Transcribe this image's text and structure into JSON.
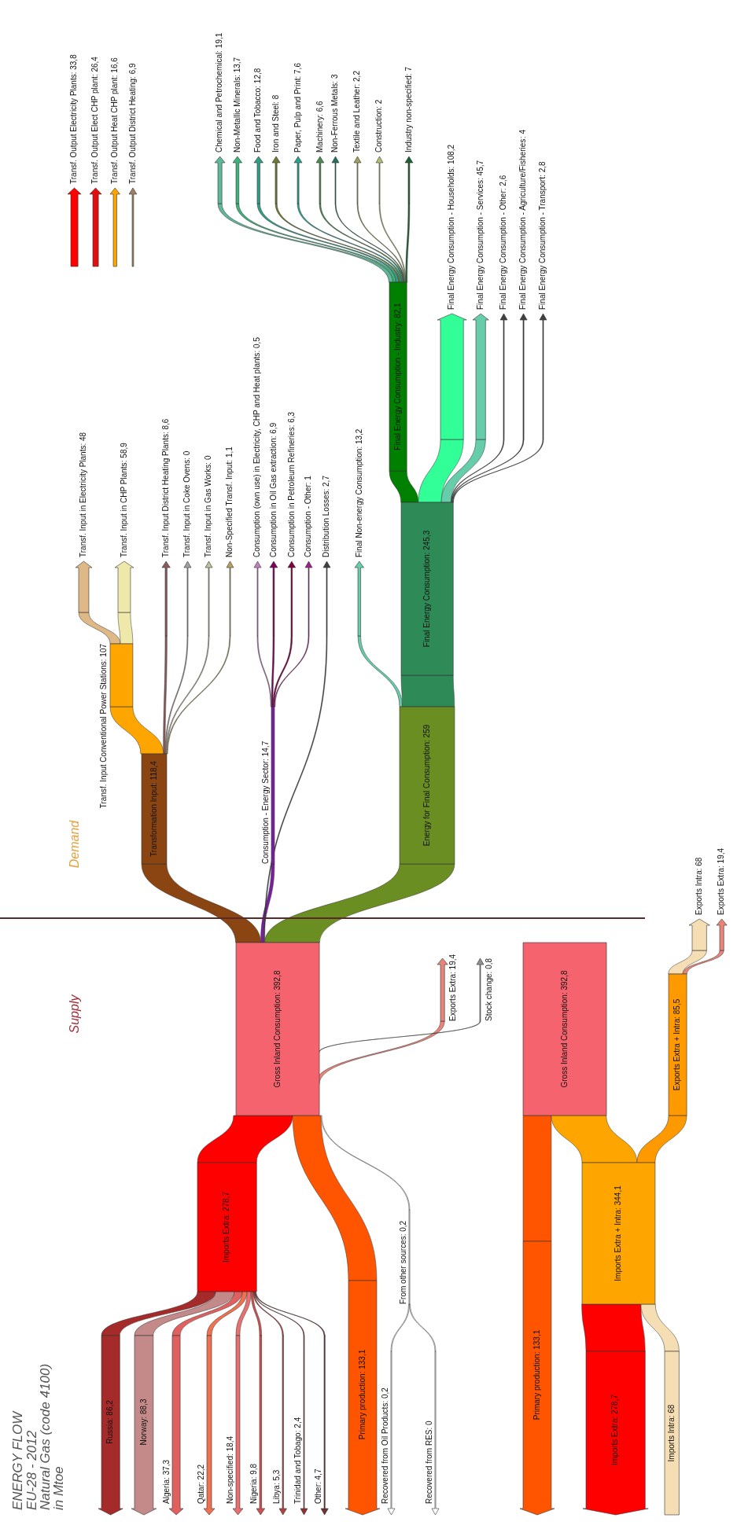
{
  "chart_data": {
    "type": "other",
    "title": "ENERGY FLOW",
    "subtitle": "EU-28 - 2012\nNatural Gas (code 4100)\nin Mtoe",
    "annotations": [
      "Supply",
      "Demand"
    ],
    "categories": [
      "Russia",
      "Norway",
      "Algeria",
      "Qatar",
      "Non-specified",
      "Nigeria",
      "Libya",
      "Trinidad and Tobago",
      "Other",
      "Imports Extra",
      "Primary production",
      "From other sources",
      "Recovered from Oil Products",
      "Recovered from RES",
      "Gross Inland Consumption",
      "Exports Extra",
      "Stock change",
      "Transformation Input",
      "Energy for Final Consumption",
      "Consumption - Energy Sector",
      "Distribution Losses",
      "Transf. Input Conventional Power Stations",
      "Transf. Input in Electricity Plants",
      "Transf. Input in CHP Plants",
      "Transf. Input District Heating Plants",
      "Transf. Input in Coke Ovens",
      "Transf. Input in Gas Works",
      "Non-Specified Transf. Input",
      "Consumption (own use) in Electricity, CHP and Heat plants",
      "Consumption in Oil Gas extraction",
      "Consumption in Petroleum Refineries",
      "Consumption - Other",
      "Final Non-energy Consumption",
      "Final Energy Consumption",
      "Final Energy Consumption - Industry",
      "Final Energy Consumption - Households",
      "Final Energy Consumption - Services",
      "Final Energy Consumption - Other",
      "Final Energy Consumption - Agriculture/Fisheries",
      "Final Energy Consumption - Transport",
      "Chemical and Petrochemical",
      "Non-Metallic Minerals",
      "Food and Tobacco",
      "Iron and Steel",
      "Paper, Pulp and Print",
      "Machinery",
      "Non-Ferrous Metals",
      "Textile and Leather",
      "Construction",
      "Industry non-specified",
      "Transf. Output Electricity Plants",
      "Transf. Output Elect CHP plant",
      "Transf. Output Heat CHP plant",
      "Transf. Output District Heating",
      "Gross Inland Consumption",
      "Primary production",
      "Imports Extra",
      "Imports Extra + Intra",
      "Exports Extra + Intra",
      "Exports Intra",
      "Imports Intra",
      "Exports Extra"
    ],
    "values": [
      86.2,
      88.3,
      37.3,
      22.2,
      18.4,
      9.8,
      5.3,
      2.4,
      4.7,
      278.7,
      133.1,
      0.2,
      0.2,
      0,
      392.8,
      19.4,
      0.8,
      118.4,
      259,
      14.7,
      2.7,
      107,
      48,
      58.9,
      8.6,
      0,
      0,
      1.1,
      0.5,
      6.9,
      6.3,
      1,
      13.2,
      245.3,
      82.1,
      108.2,
      45.7,
      2.6,
      4,
      2.8,
      19.1,
      13.7,
      12.8,
      8,
      7.6,
      6.6,
      3,
      2.2,
      2,
      7,
      33.8,
      26.4,
      16.6,
      6.9,
      392.8,
      133.1,
      278.7,
      344.1,
      85.5,
      68,
      68,
      19.4
    ],
    "value_labels": [
      ": 86,2",
      ": 88,3",
      ": 37,3",
      ": 22,2",
      ": 18,4",
      ": 9,8",
      ": 5,3",
      ": 2,4",
      ": 4,7",
      ": 278,7",
      ": 133,1",
      ": 0,2",
      ": 0,2",
      ": 0",
      ": 392,8",
      ": 19,4",
      ": 0,8",
      ": 118,4",
      ": 259",
      ": 14,7",
      ": 2,7",
      ": 107",
      ": 48",
      ": 58,9",
      ": 8,6",
      ": 0",
      ": 0",
      ": 1,1",
      ": 0,5",
      ": 6,9",
      ": 6,3",
      ": 1",
      ": 13,2",
      ": 245,3",
      ": 82,1",
      ": 108,2",
      ": 45,7",
      ": 2,6",
      ": 4",
      ": 2,8",
      ": 19,1",
      ": 13,7",
      ": 12,8",
      ": 8",
      ": 7,6",
      ": 6,6",
      ": 3",
      ": 2,2",
      ": 2",
      ": 7",
      ": 33,8",
      ": 26,4",
      ": 16,6",
      ": 6,9",
      ": 392,8",
      ": 133,1",
      ": 278,7",
      ": 344,1",
      ": 85,5",
      ": 68",
      ": 68",
      ": 19,4"
    ],
    "colors": [
      "#a52a2a",
      "#c48a8a",
      "#e06060",
      "#f07050",
      "#e87070",
      "#d05050",
      "#b84040",
      "#903030",
      "#703030",
      "#ff0000",
      "#ff5500",
      "#ffffff",
      "#ffffff",
      "#ffffff",
      "#f4636e",
      "#e8857a",
      "#909090",
      "#8b4513",
      "#6b8e23",
      "#7b1fa2",
      "#404040",
      "#ffa500",
      "#deb887",
      "#eee8aa",
      "#8b5a5a",
      "#a0a0a0",
      "#c0c0a0",
      "#b8a060",
      "#c080c0",
      "#800060",
      "#800040",
      "#a0208a",
      "#66cdaa",
      "#2e8b57",
      "#008000",
      "#33ff99",
      "#66cdaa",
      "#404040",
      "#404040",
      "#404040",
      "#5fb89a",
      "#3cb37a",
      "#2e9e86",
      "#6b7a30",
      "#2aa090",
      "#4a8a50",
      "#207060",
      "#a0a060",
      "#b0c070",
      "#1a6030",
      "#ff0000",
      "#e01010",
      "#ffa500",
      "#a08060",
      "#f4636e",
      "#ff5500",
      "#ff0000",
      "#ffa500",
      "#ff9900",
      "#f5deb3",
      "#f5deb3",
      "#e8857a"
    ]
  }
}
